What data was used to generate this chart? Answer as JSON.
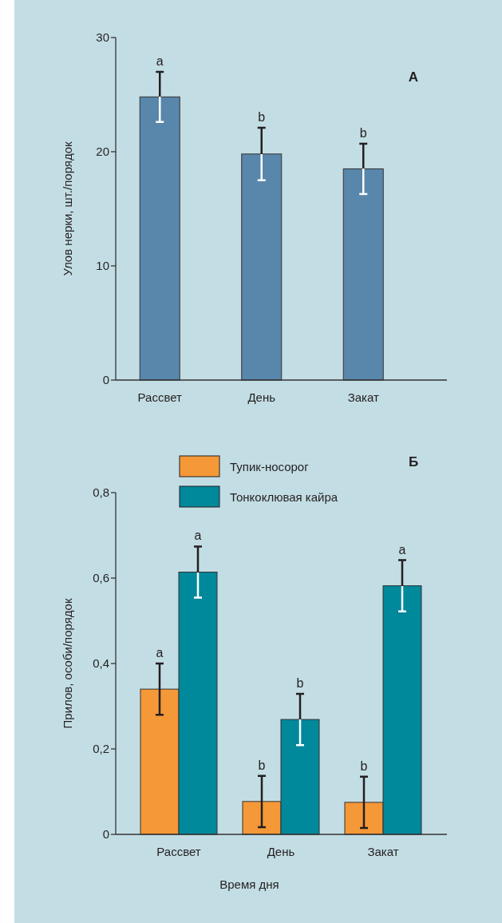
{
  "chart_data": [
    {
      "type": "bar",
      "title": "А",
      "ylabel": "Улов нерки, шт./порядок",
      "categories": [
        "Рассвет",
        "День",
        "Закат"
      ],
      "series": [
        {
          "color": "#5986ab",
          "values": [
            24.8,
            19.8,
            18.5
          ],
          "errors": [
            2.2,
            2.3,
            2.2
          ]
        }
      ],
      "ylim": [
        0,
        30
      ],
      "yticks": [
        0,
        10,
        20,
        30
      ],
      "annotations": [
        {
          "text": "a",
          "x": "Рассвет",
          "y": 27.0
        },
        {
          "text": "b",
          "x": "День",
          "y": 22.1
        },
        {
          "text": "b",
          "x": "Закат",
          "y": 20.7
        }
      ]
    },
    {
      "type": "bar",
      "title": "Б",
      "ylabel": "Прилов, особи/порядок",
      "xlabel": "Время дня",
      "categories": [
        "Рассвет",
        "День",
        "Закат"
      ],
      "series": [
        {
          "name": "Тупик-носорог",
          "color": "#f59838",
          "values": [
            0.34,
            0.077,
            0.075
          ],
          "errors": [
            0.06,
            0.06,
            0.06
          ]
        },
        {
          "name": "Тонкоклювая кайра",
          "color": "#00889b",
          "values": [
            0.614,
            0.269,
            0.582
          ],
          "errors": [
            0.06,
            0.06,
            0.06
          ]
        }
      ],
      "ylim": [
        0,
        0.8
      ],
      "yticks": [
        0,
        {
          "value": 0.2,
          "label": "0,2"
        },
        {
          "value": 0.4,
          "label": "0,4"
        },
        {
          "value": 0.6,
          "label": "0,6"
        },
        {
          "value": 0.8,
          "label": "0,8"
        }
      ],
      "legend": "top",
      "annotations": [
        "a",
        "a",
        "b",
        "b",
        "b",
        "a"
      ]
    }
  ]
}
